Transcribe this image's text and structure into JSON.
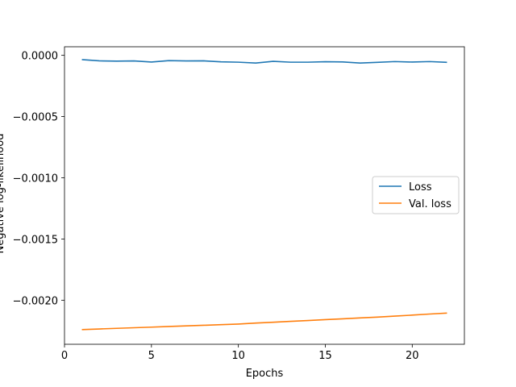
{
  "chart_data": {
    "type": "line",
    "title": "",
    "xlabel": "Epochs",
    "ylabel": "Negative log-likelihood",
    "xlim": [
      0,
      23
    ],
    "ylim": [
      -0.00236,
      7e-05
    ],
    "x_ticks": [
      0,
      5,
      10,
      15,
      20
    ],
    "x_tick_labels": [
      "0",
      "5",
      "10",
      "15",
      "20"
    ],
    "y_ticks": [
      0.0,
      -0.0005,
      -0.001,
      -0.0015,
      -0.002
    ],
    "y_tick_labels": [
      "0.0000",
      "−0.0005",
      "−0.0010",
      "−0.0015",
      "−0.0020"
    ],
    "grid": false,
    "legend_position": "center-right",
    "x": [
      1,
      2,
      3,
      4,
      5,
      6,
      7,
      8,
      9,
      10,
      11,
      12,
      13,
      14,
      15,
      16,
      17,
      18,
      19,
      20,
      21,
      22
    ],
    "series": [
      {
        "name": "Loss",
        "color": "#1f77b4",
        "values": [
          -3.5e-05,
          -4.5e-05,
          -4.7e-05,
          -4.6e-05,
          -5.5e-05,
          -4.3e-05,
          -4.6e-05,
          -4.5e-05,
          -5.3e-05,
          -5.6e-05,
          -6.3e-05,
          -4.9e-05,
          -5.6e-05,
          -5.6e-05,
          -5.2e-05,
          -5.4e-05,
          -6.3e-05,
          -5.7e-05,
          -5.1e-05,
          -5.5e-05,
          -5.1e-05,
          -5.7e-05
        ]
      },
      {
        "name": "Val. loss",
        "color": "#ff7f0e",
        "values": [
          -0.00224,
          -0.002235,
          -0.00223,
          -0.002225,
          -0.00222,
          -0.002215,
          -0.00221,
          -0.002205,
          -0.0022,
          -0.002195,
          -0.002187,
          -0.00218,
          -0.002173,
          -0.002166,
          -0.002159,
          -0.002152,
          -0.002145,
          -0.002138,
          -0.00213,
          -0.002122,
          -0.002113,
          -0.002105
        ]
      }
    ]
  }
}
